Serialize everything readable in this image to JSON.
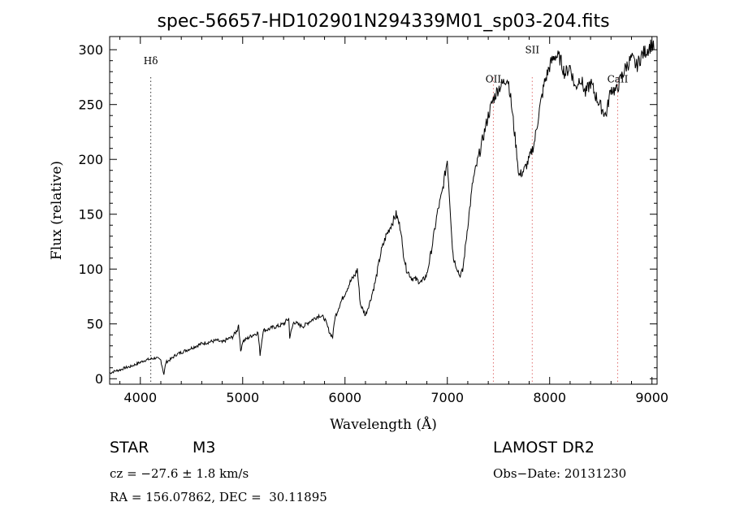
{
  "chart_data": {
    "type": "line",
    "title": "spec-56657-HD102901N294339M01_sp03-204.fits",
    "xlabel": "Wavelength (Å)",
    "ylabel": "Flux (relative)",
    "xlim": [
      3700,
      9050
    ],
    "ylim": [
      -5,
      312
    ],
    "xticks": [
      4000,
      5000,
      6000,
      7000,
      8000,
      9000
    ],
    "yticks": [
      0,
      50,
      100,
      150,
      200,
      250,
      300
    ],
    "grid": false,
    "line_color": "#000000",
    "marker_color": "#e07070",
    "lines": [
      {
        "label": "Hδ",
        "x": 4102
      },
      {
        "label": "OII",
        "x": 7450
      },
      {
        "label": "SII",
        "x": 7830
      },
      {
        "label": "CaII",
        "x": 8665
      }
    ],
    "series": [
      {
        "x": [
          3700,
          3750,
          3800,
          3850,
          3900,
          3950,
          4000,
          4050,
          4100,
          4150,
          4200,
          4230,
          4250,
          4300,
          4350,
          4400,
          4450,
          4500,
          4550,
          4600,
          4650,
          4700,
          4750,
          4800,
          4850,
          4900,
          4950,
          4960,
          4980,
          5000,
          5050,
          5100,
          5150,
          5170,
          5200,
          5250,
          5300,
          5350,
          5400,
          5450,
          5460,
          5500,
          5550,
          5600,
          5650,
          5700,
          5750,
          5800,
          5850,
          5880,
          5900,
          5950,
          6000,
          6050,
          6100,
          6120,
          6150,
          6200,
          6250,
          6300,
          6350,
          6400,
          6450,
          6500,
          6550,
          6560,
          6600,
          6650,
          6700,
          6750,
          6800,
          6850,
          6900,
          6950,
          7000,
          7050,
          7060,
          7080,
          7100,
          7120,
          7150,
          7200,
          7250,
          7300,
          7350,
          7400,
          7450,
          7500,
          7550,
          7580,
          7600,
          7620,
          7650,
          7680,
          7700,
          7750,
          7800,
          7850,
          7900,
          7950,
          8000,
          8050,
          8100,
          8150,
          8200,
          8250,
          8300,
          8350,
          8400,
          8450,
          8500,
          8550,
          8600,
          8650,
          8700,
          8750,
          8800,
          8850,
          8900,
          8950,
          9000,
          9020
        ],
        "y": [
          5,
          7,
          8,
          10,
          11,
          13,
          15,
          17,
          18,
          19,
          17,
          4,
          15,
          18,
          22,
          24,
          26,
          28,
          30,
          32,
          33,
          34,
          35,
          33,
          36,
          38,
          45,
          50,
          25,
          34,
          37,
          40,
          42,
          22,
          44,
          45,
          47,
          48,
          50,
          55,
          38,
          52,
          49,
          48,
          52,
          55,
          58,
          55,
          42,
          38,
          55,
          68,
          78,
          88,
          95,
          100,
          68,
          58,
          72,
          90,
          115,
          130,
          140,
          150,
          135,
          120,
          100,
          92,
          90,
          88,
          95,
          120,
          150,
          170,
          200,
          120,
          110,
          105,
          100,
          94,
          98,
          140,
          180,
          200,
          220,
          240,
          255,
          265,
          270,
          275,
          270,
          255,
          230,
          205,
          185,
          190,
          200,
          215,
          245,
          270,
          285,
          295,
          292,
          278,
          285,
          265,
          275,
          260,
          270,
          258,
          248,
          240,
          265,
          262,
          275,
          285,
          292,
          285,
          295,
          300,
          305,
          300
        ]
      }
    ]
  },
  "footer": {
    "object_type": "STAR",
    "subclass": "M3",
    "survey": "LAMOST DR2",
    "redshift": "cz = −27.6 ± 1.8 km/s",
    "obs_date": "Obs−Date: 20131230",
    "coords": "RA = 156.07862, DEC =  30.11895"
  }
}
